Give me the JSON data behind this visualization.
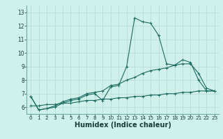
{
  "title": "",
  "xlabel": "Humidex (Indice chaleur)",
  "ylabel": "",
  "bg_color": "#cff0eb",
  "line_color": "#1a6b60",
  "grid_color": "#b8ddd8",
  "xlim": [
    -0.5,
    23.5
  ],
  "ylim": [
    5.5,
    13.5
  ],
  "xticks": [
    0,
    1,
    2,
    3,
    4,
    5,
    6,
    7,
    8,
    9,
    10,
    11,
    12,
    13,
    14,
    15,
    16,
    17,
    18,
    19,
    20,
    21,
    22,
    23
  ],
  "yticks": [
    6,
    7,
    8,
    9,
    10,
    11,
    12,
    13
  ],
  "line1_x": [
    0,
    1,
    2,
    3,
    4,
    5,
    6,
    7,
    8,
    9,
    10,
    11,
    12,
    13,
    14,
    15,
    16,
    17,
    18,
    19,
    20,
    21,
    22,
    23
  ],
  "line1_y": [
    6.8,
    5.8,
    5.9,
    6.0,
    6.3,
    6.5,
    6.6,
    6.9,
    7.0,
    6.5,
    7.5,
    7.6,
    9.0,
    12.6,
    12.3,
    12.2,
    11.3,
    9.2,
    9.1,
    9.5,
    9.3,
    8.0,
    7.2,
    7.2
  ],
  "line2_x": [
    0,
    1,
    2,
    3,
    4,
    5,
    6,
    7,
    8,
    9,
    10,
    11,
    12,
    13,
    14,
    15,
    16,
    17,
    18,
    19,
    20,
    21,
    22,
    23
  ],
  "line2_y": [
    6.8,
    5.8,
    5.9,
    6.1,
    6.4,
    6.6,
    6.7,
    7.0,
    7.1,
    7.2,
    7.6,
    7.7,
    8.0,
    8.2,
    8.5,
    8.7,
    8.8,
    8.9,
    9.1,
    9.2,
    9.2,
    8.5,
    7.4,
    7.2
  ],
  "line3_x": [
    0,
    1,
    2,
    3,
    4,
    5,
    6,
    7,
    8,
    9,
    10,
    11,
    12,
    13,
    14,
    15,
    16,
    17,
    18,
    19,
    20,
    21,
    22,
    23
  ],
  "line3_y": [
    6.1,
    6.1,
    6.2,
    6.2,
    6.3,
    6.3,
    6.4,
    6.5,
    6.5,
    6.6,
    6.6,
    6.7,
    6.7,
    6.8,
    6.8,
    6.9,
    6.9,
    7.0,
    7.0,
    7.1,
    7.1,
    7.2,
    7.2,
    7.2
  ],
  "xlabel_fontsize": 7,
  "tick_fontsize": 5.5
}
